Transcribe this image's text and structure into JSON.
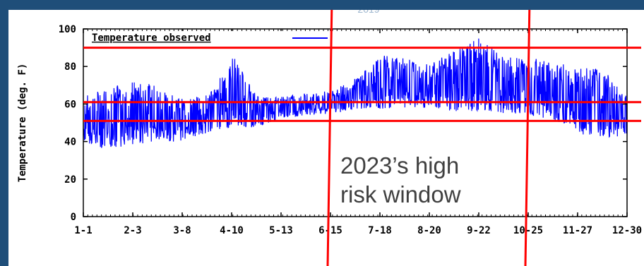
{
  "slide_heading_fragment": "2019",
  "annotation": {
    "line1": "2023’s high",
    "line2": "risk window"
  },
  "colors": {
    "background": "#1f4e79",
    "panel": "#ffffff",
    "series": "#0000ff",
    "overlay": "#ff0000",
    "axis": "#000000",
    "annotation_text": "#404040"
  },
  "chart_data": {
    "type": "line",
    "title": "",
    "xlabel": "",
    "ylabel": "Temperature (deg. F)",
    "ylim": [
      0,
      100
    ],
    "yticks": [
      0,
      20,
      40,
      60,
      80,
      100
    ],
    "xticks": [
      "1-1",
      "2-3",
      "3-8",
      "4-10",
      "5-13",
      "6-15",
      "7-18",
      "8-20",
      "9-22",
      "10-25",
      "11-27",
      "12-30"
    ],
    "legend": {
      "label": "Temperature observed",
      "placement": "top-left"
    },
    "grid": false,
    "series": [
      {
        "name": "Temperature observed",
        "envelope": {
          "x": [
            "1-1",
            "1-15",
            "2-3",
            "2-20",
            "3-8",
            "3-25",
            "4-10",
            "4-25",
            "5-13",
            "5-30",
            "6-15",
            "7-1",
            "7-18",
            "8-5",
            "8-20",
            "9-5",
            "9-22",
            "10-8",
            "10-25",
            "11-10",
            "11-27",
            "12-15",
            "12-30"
          ],
          "max": [
            64,
            68,
            72,
            70,
            62,
            66,
            86,
            65,
            64,
            66,
            67,
            74,
            86,
            84,
            82,
            88,
            95,
            85,
            85,
            82,
            80,
            78,
            65
          ],
          "min": [
            40,
            36,
            38,
            40,
            40,
            45,
            48,
            47,
            52,
            54,
            55,
            56,
            57,
            58,
            57,
            56,
            56,
            55,
            54,
            51,
            44,
            41,
            44
          ]
        }
      }
    ],
    "reference_lines": {
      "horizontal_y": [
        90,
        61,
        51
      ],
      "vertical_x": [
        "6-15",
        "10-25"
      ]
    }
  }
}
